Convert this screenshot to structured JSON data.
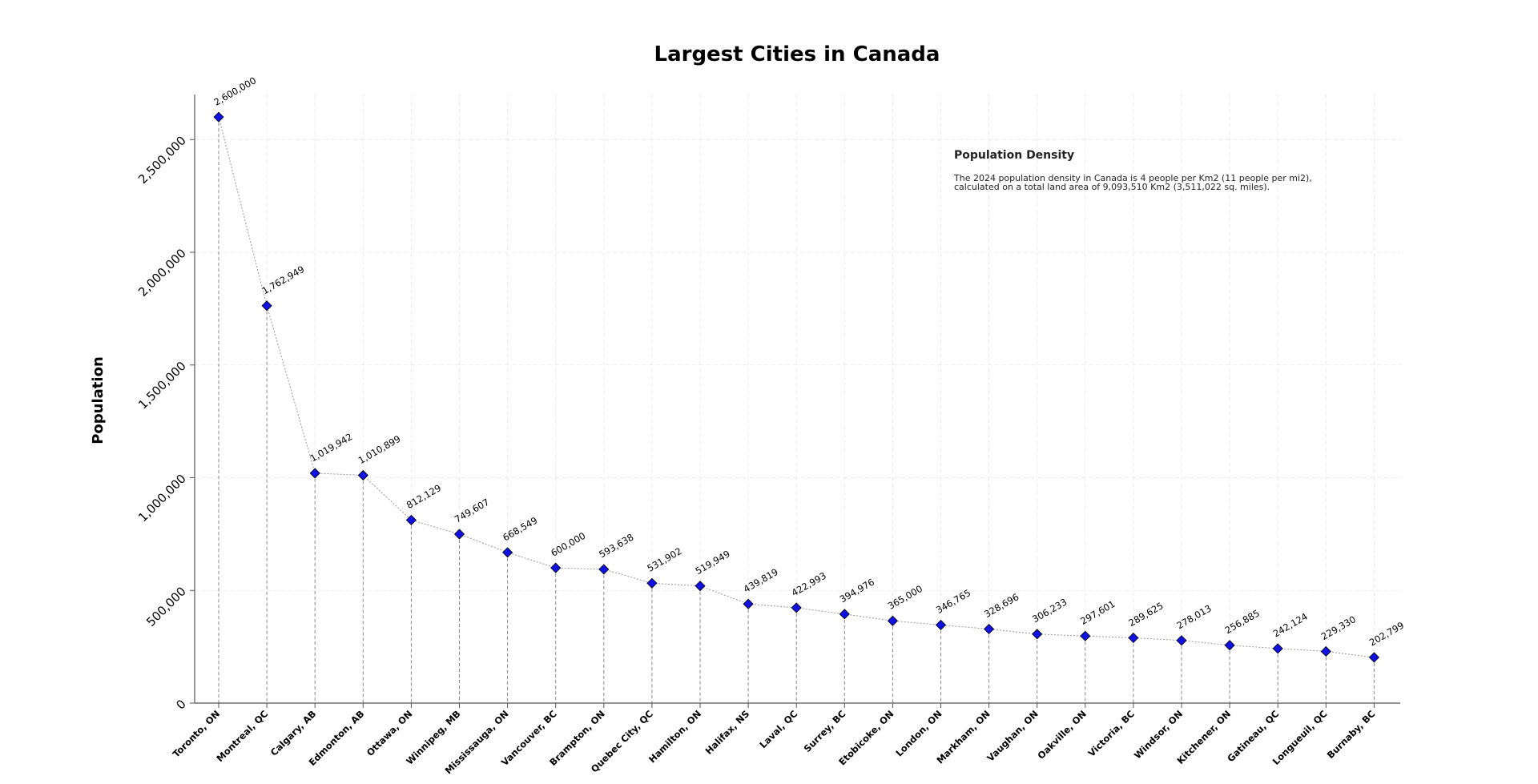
{
  "chart_data": {
    "type": "line",
    "title": "Largest Cities in Canada",
    "xlabel": "",
    "ylabel": "Population",
    "ylim": [
      0,
      2700000
    ],
    "yticks": [
      0,
      500000,
      1000000,
      1500000,
      2000000,
      2500000
    ],
    "ytick_labels": [
      "0",
      "500,000",
      "1,000,000",
      "1,500,000",
      "2,000,000",
      "2,500,000"
    ],
    "grid": true,
    "categories": [
      "Toronto, ON",
      "Montreal, QC",
      "Calgary, AB",
      "Edmonton, AB",
      "Ottawa, ON",
      "Winnipeg, MB",
      "Mississauga, ON",
      "Vancouver, BC",
      "Brampton, ON",
      "Quebec City, QC",
      "Hamilton, ON",
      "Halifax, NS",
      "Laval, QC",
      "Surrey, BC",
      "Etobicoke, ON",
      "London, ON",
      "Markham, ON",
      "Vaughan, ON",
      "Oakville, ON",
      "Victoria, BC",
      "Windsor, ON",
      "Kitchener, ON",
      "Gatineau, QC",
      "Longueuil, QC",
      "Burnaby, BC"
    ],
    "values": [
      2600000,
      1762949,
      1019942,
      1010899,
      812129,
      749607,
      668549,
      600000,
      593638,
      531902,
      519949,
      439819,
      422993,
      394976,
      365000,
      346765,
      328696,
      306233,
      297601,
      289625,
      278013,
      256885,
      242124,
      229330,
      202799
    ],
    "value_labels": [
      "2,600,000",
      "1,762,949",
      "1,019,942",
      "1,010,899",
      "812,129",
      "749,607",
      "668,549",
      "600,000",
      "593,638",
      "531,902",
      "519,949",
      "439,819",
      "422,993",
      "394,976",
      "365,000",
      "346,765",
      "328,696",
      "306,233",
      "297,601",
      "289,625",
      "278,013",
      "256,885",
      "242,124",
      "229,330",
      "202,799"
    ],
    "marker": "diamond",
    "colors": {
      "marker_fill": "#1010e0",
      "marker_edge": "#000000",
      "line": "#999999"
    },
    "annotation": {
      "title": "Population Density",
      "line1": "The 2024 population density in Canada is 4 people per Km2 (11 people per mi2),",
      "line2": "calculated on a total land area of 9,093,510 Km2 (3,511,022 sq. miles)."
    }
  }
}
